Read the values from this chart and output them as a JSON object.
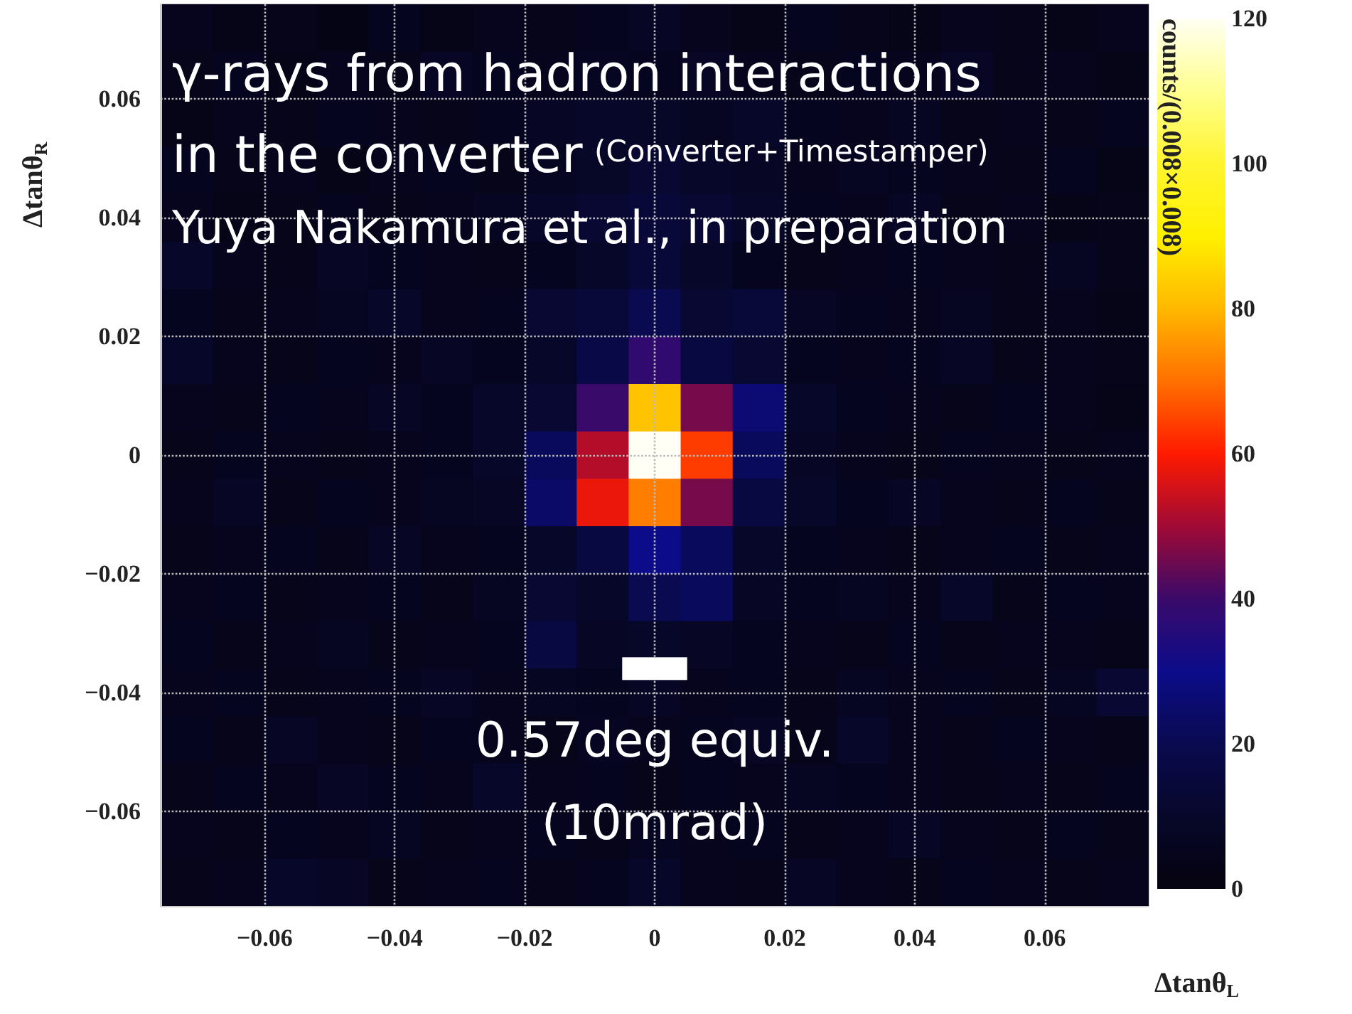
{
  "chart_data": {
    "type": "heatmap",
    "title": "γ-rays from hadron interactions in the converter",
    "subtitle": "(Converter+Timestamper)",
    "xlabel": "Δtanθ$_{L}$",
    "ylabel": "Δtanθ$_{R}$",
    "clabel": "counts/(0.008×0.008)",
    "annotations": [
      "Yuya Nakamura et al., in preparation",
      "0.57deg equiv.\n(10mrad)"
    ],
    "xlim": [
      -0.076,
      0.076
    ],
    "ylim": [
      -0.076,
      0.076
    ],
    "xticks": [
      {
        "value": -0.06,
        "label": "−0.06"
      },
      {
        "value": -0.04,
        "label": "−0.04"
      },
      {
        "value": -0.02,
        "label": "−0.02"
      },
      0,
      0.02,
      0.04,
      0.06
    ],
    "yticks": [
      {
        "value": -0.06,
        "label": "−0.06"
      },
      {
        "value": -0.04,
        "label": "−0.04"
      },
      {
        "value": -0.02,
        "label": "−0.02"
      },
      0,
      0.02,
      0.04,
      0.06
    ],
    "clim": [
      0,
      120
    ],
    "cticks": [
      0,
      20,
      40,
      60,
      80,
      100,
      120
    ],
    "grid": true,
    "cells": [
      [
        5,
        3,
        4,
        2,
        6,
        3,
        5,
        4,
        6,
        8,
        5,
        3,
        6,
        4,
        3,
        5,
        4,
        3,
        5
      ],
      [
        4,
        6,
        3,
        5,
        4,
        8,
        6,
        5,
        7,
        6,
        8,
        5,
        4,
        6,
        5,
        8,
        4,
        5,
        3
      ],
      [
        3,
        5,
        4,
        6,
        5,
        4,
        6,
        8,
        10,
        9,
        7,
        10,
        6,
        5,
        7,
        4,
        5,
        4,
        6
      ],
      [
        6,
        4,
        5,
        3,
        5,
        6,
        4,
        7,
        9,
        12,
        10,
        8,
        5,
        7,
        6,
        5,
        4,
        6,
        3
      ],
      [
        5,
        3,
        4,
        6,
        4,
        5,
        7,
        10,
        12,
        14,
        12,
        10,
        6,
        5,
        8,
        4,
        5,
        3,
        4
      ],
      [
        10,
        5,
        4,
        8,
        6,
        5,
        4,
        6,
        10,
        14,
        10,
        6,
        4,
        5,
        6,
        5,
        4,
        7,
        4
      ],
      [
        6,
        4,
        5,
        7,
        10,
        5,
        6,
        12,
        14,
        20,
        12,
        14,
        8,
        6,
        5,
        7,
        4,
        5,
        3
      ],
      [
        10,
        5,
        4,
        6,
        5,
        8,
        6,
        10,
        18,
        38,
        16,
        12,
        6,
        5,
        6,
        8,
        4,
        5,
        4
      ],
      [
        5,
        4,
        6,
        5,
        8,
        6,
        10,
        12,
        40,
        82,
        46,
        26,
        10,
        6,
        5,
        4,
        6,
        5,
        3
      ],
      [
        4,
        6,
        5,
        4,
        5,
        6,
        10,
        22,
        52,
        120,
        64,
        22,
        8,
        5,
        4,
        6,
        5,
        4,
        5
      ],
      [
        5,
        8,
        4,
        6,
        5,
        7,
        8,
        24,
        58,
        72,
        46,
        16,
        10,
        6,
        8,
        5,
        4,
        6,
        4
      ],
      [
        4,
        5,
        6,
        4,
        8,
        5,
        6,
        10,
        16,
        30,
        22,
        10,
        6,
        5,
        4,
        5,
        6,
        4,
        5
      ],
      [
        5,
        6,
        4,
        5,
        6,
        4,
        7,
        12,
        10,
        20,
        22,
        8,
        6,
        7,
        5,
        10,
        4,
        6,
        5
      ],
      [
        6,
        4,
        5,
        7,
        4,
        5,
        6,
        16,
        8,
        10,
        8,
        6,
        5,
        4,
        6,
        4,
        5,
        5,
        4
      ],
      [
        5,
        6,
        4,
        5,
        6,
        8,
        5,
        7,
        6,
        8,
        5,
        6,
        4,
        7,
        5,
        6,
        4,
        7,
        12
      ],
      [
        6,
        4,
        8,
        5,
        4,
        6,
        5,
        4,
        7,
        5,
        6,
        8,
        4,
        10,
        5,
        4,
        6,
        5,
        4
      ],
      [
        4,
        6,
        5,
        8,
        6,
        5,
        10,
        5,
        6,
        4,
        6,
        5,
        7,
        6,
        5,
        4,
        5,
        4,
        6
      ],
      [
        5,
        4,
        6,
        5,
        7,
        4,
        5,
        6,
        4,
        7,
        5,
        6,
        4,
        5,
        8,
        5,
        4,
        6,
        4
      ],
      [
        4,
        5,
        10,
        8,
        4,
        5,
        6,
        4,
        6,
        10,
        5,
        4,
        8,
        5,
        4,
        6,
        5,
        4,
        5
      ]
    ]
  }
}
